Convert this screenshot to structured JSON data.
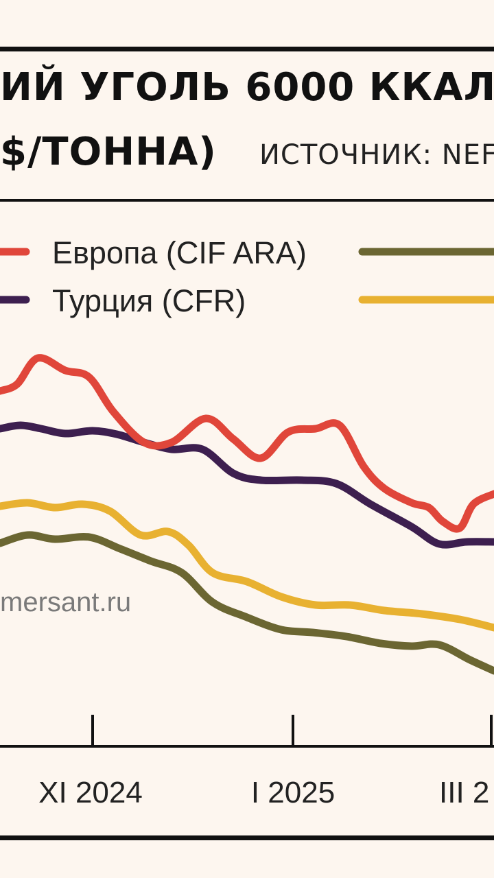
{
  "header": {
    "title_line1": "ИЙ УГОЛЬ 6000 ККАЛ",
    "title_line2": "$/ТОННА)",
    "source": "ИСТОЧНИК: NEF"
  },
  "watermark": "mersant.ru",
  "colors": {
    "europe": "#e0463a",
    "turkey": "#3d1f4f",
    "olive": "#6b6632",
    "yellow": "#e8b131",
    "background": "#fdf6ef"
  },
  "chart_data": {
    "type": "line",
    "title": "ИЙ УГОЛЬ 6000 ККАЛ ($/ТОННА)",
    "xlabel": "",
    "ylabel": "",
    "x_tick_labels": [
      "XI 2024",
      "I 2025",
      "III 2"
    ],
    "grid": false,
    "legend_position": "top",
    "series": [
      {
        "name": "Европа (CIF ARA)",
        "color": "#e0463a",
        "points": [
          [
            0,
            570
          ],
          [
            25,
            560
          ],
          [
            55,
            522
          ],
          [
            95,
            540
          ],
          [
            130,
            550
          ],
          [
            165,
            600
          ],
          [
            210,
            645
          ],
          [
            250,
            645
          ],
          [
            300,
            610
          ],
          [
            340,
            640
          ],
          [
            380,
            668
          ],
          [
            420,
            630
          ],
          [
            460,
            625
          ],
          [
            495,
            620
          ],
          [
            530,
            680
          ],
          [
            560,
            712
          ],
          [
            600,
            733
          ],
          [
            625,
            740
          ],
          [
            645,
            760
          ],
          [
            670,
            770
          ],
          [
            690,
            735
          ],
          [
            720,
            720
          ]
        ]
      },
      {
        "name": "Турция (CFR)",
        "color": "#3d1f4f",
        "points": [
          [
            0,
            625
          ],
          [
            30,
            620
          ],
          [
            60,
            625
          ],
          [
            95,
            632
          ],
          [
            135,
            628
          ],
          [
            170,
            633
          ],
          [
            210,
            645
          ],
          [
            250,
            655
          ],
          [
            295,
            655
          ],
          [
            340,
            690
          ],
          [
            380,
            700
          ],
          [
            440,
            700
          ],
          [
            490,
            705
          ],
          [
            540,
            735
          ],
          [
            600,
            768
          ],
          [
            640,
            793
          ],
          [
            680,
            790
          ],
          [
            720,
            790
          ]
        ]
      },
      {
        "name": "",
        "color": "#6b6632",
        "points": [
          [
            0,
            792
          ],
          [
            40,
            780
          ],
          [
            80,
            786
          ],
          [
            130,
            783
          ],
          [
            175,
            800
          ],
          [
            220,
            818
          ],
          [
            265,
            835
          ],
          [
            310,
            878
          ],
          [
            360,
            900
          ],
          [
            410,
            918
          ],
          [
            455,
            922
          ],
          [
            505,
            928
          ],
          [
            555,
            938
          ],
          [
            600,
            942
          ],
          [
            640,
            940
          ],
          [
            685,
            962
          ],
          [
            720,
            978
          ]
        ]
      },
      {
        "name": "",
        "color": "#e8b131",
        "points": [
          [
            0,
            738
          ],
          [
            40,
            733
          ],
          [
            80,
            740
          ],
          [
            120,
            735
          ],
          [
            160,
            745
          ],
          [
            205,
            780
          ],
          [
            245,
            775
          ],
          [
            275,
            795
          ],
          [
            310,
            835
          ],
          [
            360,
            848
          ],
          [
            410,
            870
          ],
          [
            460,
            882
          ],
          [
            510,
            882
          ],
          [
            560,
            890
          ],
          [
            615,
            895
          ],
          [
            670,
            903
          ],
          [
            720,
            915
          ]
        ]
      }
    ],
    "legend": [
      {
        "label": "Европа (CIF ARA)",
        "color": "#e0463a"
      },
      {
        "label": "Турция (CFR)",
        "color": "#3d1f4f"
      },
      {
        "label": "",
        "color": "#6b6632"
      },
      {
        "label": "",
        "color": "#e8b131"
      }
    ]
  }
}
